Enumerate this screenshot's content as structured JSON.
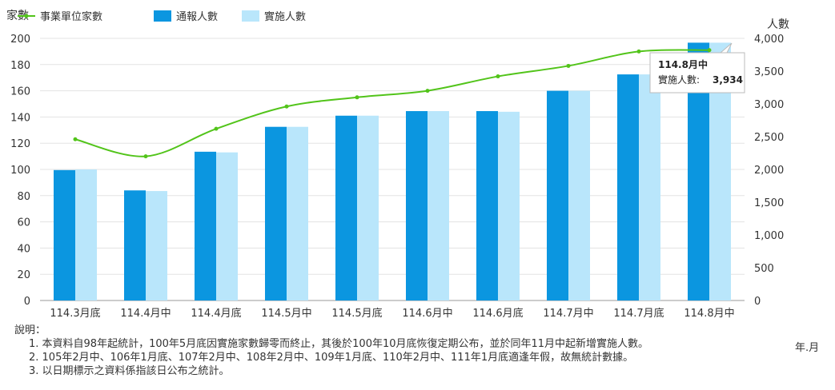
{
  "chart_data": {
    "type": "bar",
    "categories": [
      "114.3月底",
      "114.4月中",
      "114.4月底",
      "114.5月中",
      "114.5月底",
      "114.6月中",
      "114.6月底",
      "114.7月中",
      "114.7月底",
      "114.8月中"
    ],
    "series": [
      {
        "name": "事業單位家數",
        "kind": "line",
        "axis": "left",
        "color": "#52c41a",
        "values": [
          123,
          110,
          131,
          148,
          155,
          160,
          171,
          179,
          190,
          191
        ]
      },
      {
        "name": "通報人數",
        "kind": "bar",
        "axis": "right",
        "color": "#0b96e0",
        "values": [
          1990,
          1680,
          2270,
          2650,
          2820,
          2890,
          2890,
          3200,
          3450,
          3934
        ]
      },
      {
        "name": "實施人數",
        "kind": "bar",
        "axis": "right",
        "color": "#b9e6fb",
        "values": [
          2000,
          1670,
          2260,
          2650,
          2820,
          2890,
          2880,
          3200,
          3450,
          3934
        ]
      }
    ],
    "yleft": {
      "label": "家數",
      "min": 0,
      "max": 200,
      "ticks": [
        "0",
        "20",
        "40",
        "60",
        "80",
        "100",
        "120",
        "140",
        "160",
        "180",
        "200"
      ]
    },
    "yright": {
      "label": "人數",
      "min": 0,
      "max": 4000,
      "ticks": [
        "0",
        "500",
        "1,000",
        "1,500",
        "2,000",
        "2,500",
        "3,000",
        "3,500",
        "4,000"
      ]
    },
    "xunit": "年.月",
    "legend_position": "top-left",
    "grid": true,
    "tooltip": {
      "title": "114.8月中",
      "label": "實施人數:",
      "value": "3,934"
    }
  },
  "notes": {
    "title": "說明：",
    "items": [
      "1. 本資料自98年起統計，100年5月底因實施家數歸零而終止，其後於100年10月底恢復定期公布，並於同年11月中起新增實施人數。",
      "2. 105年2月中、106年1月底、107年2月中、108年2月中、109年1月底、110年2月中、111年1月底適逢年假，故無統計數據。",
      "3. 以日期標示之資料係指該日公布之統計。"
    ]
  }
}
